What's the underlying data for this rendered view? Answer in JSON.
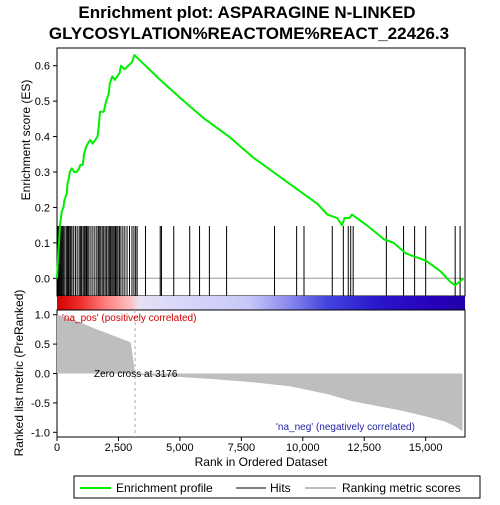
{
  "chart_data": {
    "type": "line",
    "title_line1": "Enrichment plot: ASPARAGINE N-LINKED",
    "title_line2": "GLYCOSYLATION%REACTOME%REACT_22426.3",
    "xlabel": "Rank in Ordered Dataset",
    "ylabel_top": "Enrichment score (ES)",
    "ylabel_bottom": "Ranked list metric (PreRanked)",
    "x_range": [
      0,
      16600
    ],
    "es_ylim": [
      -0.05,
      0.65
    ],
    "metric_ylim": [
      -1.08,
      1.08
    ],
    "x_ticks": [
      0,
      2500,
      5000,
      7500,
      10000,
      12500,
      15000
    ],
    "x_tick_labels": [
      "0",
      "2,500",
      "5,000",
      "7,500",
      "10,000",
      "12,500",
      "15,000"
    ],
    "es_ticks": [
      0.0,
      0.1,
      0.2,
      0.3,
      0.4,
      0.5,
      0.6
    ],
    "es_tick_labels": [
      "0.0",
      "0.1",
      "0.2",
      "0.3",
      "0.4",
      "0.5",
      "0.6"
    ],
    "metric_ticks": [
      1.0,
      0.5,
      0.0,
      -0.5,
      -1.0
    ],
    "metric_tick_labels": [
      "1.0",
      "0.5",
      "0.0",
      "-0.5",
      "-1.0"
    ],
    "enrichment_profile": [
      [
        0,
        0.0
      ],
      [
        30,
        0.04
      ],
      [
        60,
        0.08
      ],
      [
        90,
        0.11
      ],
      [
        120,
        0.15
      ],
      [
        160,
        0.17
      ],
      [
        200,
        0.19
      ],
      [
        260,
        0.2
      ],
      [
        300,
        0.22
      ],
      [
        350,
        0.23
      ],
      [
        400,
        0.24
      ],
      [
        430,
        0.27
      ],
      [
        480,
        0.28
      ],
      [
        520,
        0.3
      ],
      [
        600,
        0.31
      ],
      [
        700,
        0.3
      ],
      [
        800,
        0.3
      ],
      [
        900,
        0.31
      ],
      [
        950,
        0.32
      ],
      [
        1050,
        0.32
      ],
      [
        1100,
        0.35
      ],
      [
        1180,
        0.37
      ],
      [
        1250,
        0.38
      ],
      [
        1350,
        0.39
      ],
      [
        1450,
        0.38
      ],
      [
        1550,
        0.39
      ],
      [
        1650,
        0.4
      ],
      [
        1700,
        0.43
      ],
      [
        1750,
        0.47
      ],
      [
        1900,
        0.47
      ],
      [
        2000,
        0.5
      ],
      [
        2100,
        0.52
      ],
      [
        2150,
        0.55
      ],
      [
        2250,
        0.57
      ],
      [
        2350,
        0.56
      ],
      [
        2450,
        0.57
      ],
      [
        2550,
        0.58
      ],
      [
        2600,
        0.6
      ],
      [
        2750,
        0.59
      ],
      [
        2900,
        0.6
      ],
      [
        3050,
        0.61
      ],
      [
        3150,
        0.63
      ],
      [
        3600,
        0.6
      ],
      [
        4200,
        0.56
      ],
      [
        5000,
        0.51
      ],
      [
        6000,
        0.45
      ],
      [
        7000,
        0.4
      ],
      [
        8000,
        0.34
      ],
      [
        8800,
        0.3
      ],
      [
        9400,
        0.27
      ],
      [
        10000,
        0.24
      ],
      [
        10600,
        0.21
      ],
      [
        11000,
        0.18
      ],
      [
        11400,
        0.17
      ],
      [
        11600,
        0.15
      ],
      [
        11700,
        0.17
      ],
      [
        11900,
        0.17
      ],
      [
        12000,
        0.18
      ],
      [
        12600,
        0.15
      ],
      [
        13300,
        0.11
      ],
      [
        13700,
        0.1
      ],
      [
        14200,
        0.07
      ],
      [
        14600,
        0.06
      ],
      [
        15000,
        0.05
      ],
      [
        15600,
        0.02
      ],
      [
        16000,
        -0.01
      ],
      [
        16200,
        -0.02
      ],
      [
        16550,
        0.0
      ]
    ],
    "hit_ranks": [
      30,
      60,
      100,
      140,
      180,
      220,
      270,
      320,
      380,
      430,
      470,
      520,
      560,
      610,
      680,
      750,
      820,
      900,
      950,
      1000,
      1060,
      1110,
      1150,
      1200,
      1250,
      1300,
      1380,
      1460,
      1540,
      1620,
      1680,
      1720,
      1780,
      1840,
      1900,
      1960,
      2020,
      2080,
      2130,
      2180,
      2230,
      2280,
      2330,
      2380,
      2430,
      2480,
      2540,
      2600,
      2680,
      2760,
      2850,
      2950,
      3050,
      3130,
      3200,
      3260,
      3600,
      4200,
      4250,
      4750,
      5400,
      5800,
      6200,
      6900,
      8850,
      9750,
      10050,
      11200,
      11650,
      11850,
      11950,
      12050,
      13400,
      14100,
      14550,
      15000,
      16200,
      16400
    ],
    "zero_cross_rank": 3176,
    "metric_curve": [
      [
        0,
        1.0
      ],
      [
        100,
        0.99
      ],
      [
        300,
        0.96
      ],
      [
        600,
        0.92
      ],
      [
        1000,
        0.86
      ],
      [
        1500,
        0.77
      ],
      [
        2000,
        0.69
      ],
      [
        2500,
        0.61
      ],
      [
        3000,
        0.53
      ],
      [
        3176,
        0.0
      ],
      [
        3200,
        -0.02
      ],
      [
        5000,
        -0.06
      ],
      [
        6500,
        -0.1
      ],
      [
        8000,
        -0.15
      ],
      [
        9500,
        -0.22
      ],
      [
        11000,
        -0.35
      ],
      [
        12000,
        -0.47
      ],
      [
        13000,
        -0.55
      ],
      [
        14000,
        -0.63
      ],
      [
        15000,
        -0.73
      ],
      [
        15800,
        -0.82
      ],
      [
        16200,
        -0.9
      ],
      [
        16500,
        -0.98
      ]
    ],
    "annotations": {
      "pos": "'na_pos' (positively correlated)",
      "zero_cross": "Zero cross at 3176",
      "neg": "'na_neg' (negatively correlated)"
    },
    "legend": [
      "Enrichment profile",
      "Hits",
      "Ranking metric scores"
    ],
    "colors": {
      "profile": "#00ee00",
      "hits": "#000000",
      "metric": "#bebebe",
      "pos_text": "#cc0000",
      "neg_text": "#2222aa",
      "grid_zero": "#999999"
    }
  }
}
